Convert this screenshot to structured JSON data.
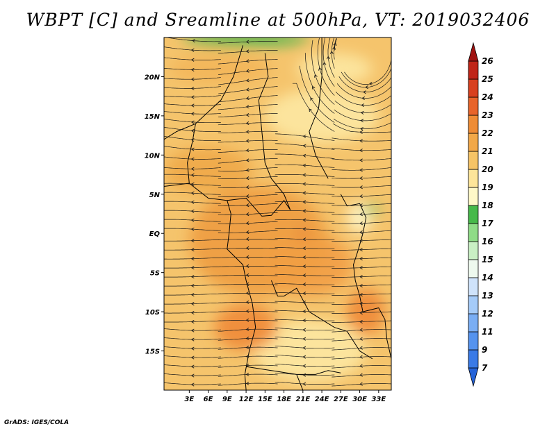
{
  "title": "WBPT [C] and Sreamline at 500hPa, VT: 2019032406",
  "credit": "GrADS: IGES/COLA",
  "map": {
    "lon_range": [
      -1,
      35
    ],
    "lat_range": [
      -20,
      25
    ],
    "lon_ticks": [
      {
        "value": 3,
        "label": "3E"
      },
      {
        "value": 6,
        "label": "6E"
      },
      {
        "value": 9,
        "label": "9E"
      },
      {
        "value": 12,
        "label": "12E"
      },
      {
        "value": 15,
        "label": "15E"
      },
      {
        "value": 18,
        "label": "18E"
      },
      {
        "value": 21,
        "label": "21E"
      },
      {
        "value": 24,
        "label": "24E"
      },
      {
        "value": 27,
        "label": "27E"
      },
      {
        "value": 30,
        "label": "30E"
      },
      {
        "value": 33,
        "label": "33E"
      }
    ],
    "lat_ticks": [
      {
        "value": 20,
        "label": "20N"
      },
      {
        "value": 15,
        "label": "15N"
      },
      {
        "value": 10,
        "label": "10N"
      },
      {
        "value": 5,
        "label": "5N"
      },
      {
        "value": 0,
        "label": "EQ"
      },
      {
        "value": -5,
        "label": "5S"
      },
      {
        "value": -10,
        "label": "10S"
      },
      {
        "value": -15,
        "label": "15S"
      }
    ],
    "base_color": "#f5c46c",
    "regions": [
      {
        "name": "north-warm",
        "color": "#f3b65a",
        "lon": 8,
        "lat": 21,
        "rx": 8,
        "ry": 2
      },
      {
        "name": "north-pale",
        "color": "#fde8a2",
        "lon": 26,
        "lat": 21,
        "rx": 6,
        "ry": 2
      },
      {
        "name": "sahel-pale",
        "color": "#fde8a2",
        "lon": 24,
        "lat": 15,
        "rx": 9,
        "ry": 3.5
      },
      {
        "name": "west-warm",
        "color": "#f0a848",
        "lon": 6,
        "lat": 8,
        "rx": 7,
        "ry": 3
      },
      {
        "name": "congo-warm",
        "color": "#ee9c40",
        "lon": 14,
        "lat": -1,
        "rx": 11,
        "ry": 7
      },
      {
        "name": "central-warm",
        "color": "#f29f45",
        "lon": 22,
        "lat": -4,
        "rx": 7,
        "ry": 4
      },
      {
        "name": "south-pale",
        "color": "#fde8a2",
        "lon": 22,
        "lat": -15,
        "rx": 9,
        "ry": 4
      },
      {
        "name": "south-hot",
        "color": "#f08a38",
        "lon": 12,
        "lat": -12,
        "rx": 5,
        "ry": 3
      },
      {
        "name": "east-hot",
        "color": "#f08a38",
        "lon": 31,
        "lat": -10,
        "rx": 3,
        "ry": 3
      },
      {
        "name": "lakes-pale",
        "color": "#fff5c8",
        "lon": 30,
        "lat": 2,
        "rx": 2,
        "ry": 2
      },
      {
        "name": "lakes-green",
        "color": "#5fc25a",
        "lon": 32,
        "lat": 3,
        "rx": 1.2,
        "ry": 0.6
      },
      {
        "name": "north-green",
        "color": "#3fb44a",
        "lon": 12,
        "lat": 24.8,
        "rx": 10,
        "ry": 0.9
      },
      {
        "name": "hotspot",
        "color": "#d95025",
        "lon": 21,
        "lat": 0,
        "rx": 0.5,
        "ry": 0.6
      }
    ],
    "colors": {
      "streamline": "#1a1a1a",
      "border": "#000000",
      "frame": "#000000"
    }
  },
  "colorbar": {
    "levels": [
      "7",
      "9",
      "11",
      "12",
      "13",
      "14",
      "15",
      "16",
      "17",
      "18",
      "19",
      "20",
      "21",
      "22",
      "23",
      "24",
      "25",
      "26"
    ],
    "colors": [
      "#2563d8",
      "#3a7ae6",
      "#5593ee",
      "#7aaef4",
      "#a5cbf8",
      "#cfe3fb",
      "#eef9ee",
      "#c9efc4",
      "#8fdc87",
      "#46b94a",
      "#fff8c8",
      "#fde59a",
      "#f6c466",
      "#f2a848",
      "#ef8c35",
      "#e8642a",
      "#d8401f",
      "#c02518",
      "#a01210"
    ]
  }
}
